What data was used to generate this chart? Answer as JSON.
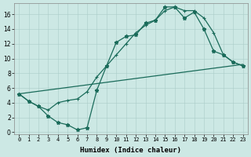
{
  "xlabel": "Humidex (Indice chaleur)",
  "bg_color": "#cce8e4",
  "line_color": "#1a6b5a",
  "xlim": [
    -0.5,
    23.5
  ],
  "ylim": [
    -0.3,
    17.5
  ],
  "xticks": [
    0,
    1,
    2,
    3,
    4,
    5,
    6,
    7,
    8,
    9,
    10,
    11,
    12,
    13,
    14,
    15,
    16,
    17,
    18,
    19,
    20,
    21,
    22,
    23
  ],
  "yticks": [
    0,
    2,
    4,
    6,
    8,
    10,
    12,
    14,
    16
  ],
  "line1_x": [
    0,
    1,
    2,
    3,
    4,
    5,
    6,
    7,
    8,
    9,
    10,
    11,
    12,
    13,
    14,
    15,
    16,
    17,
    18,
    19,
    20,
    21,
    22,
    23
  ],
  "line1_y": [
    5.2,
    4.2,
    3.5,
    2.2,
    1.3,
    1.0,
    0.3,
    0.6,
    5.7,
    9.0,
    12.2,
    13.0,
    13.2,
    14.8,
    15.2,
    17.0,
    17.0,
    15.5,
    16.3,
    14.0,
    11.0,
    10.5,
    9.5,
    9.0
  ],
  "line2_x": [
    0,
    1,
    2,
    3,
    4,
    5,
    6,
    7,
    8,
    9,
    10,
    11,
    12,
    13,
    14,
    15,
    16,
    17,
    18,
    19,
    20,
    21,
    22,
    23
  ],
  "line2_y": [
    5.2,
    4.2,
    3.5,
    3.0,
    4.0,
    4.3,
    4.5,
    5.5,
    7.5,
    9.0,
    10.5,
    12.0,
    13.5,
    14.5,
    15.2,
    16.5,
    17.0,
    16.5,
    16.5,
    15.5,
    13.5,
    10.5,
    9.5,
    9.0
  ],
  "line3_x": [
    0,
    23
  ],
  "line3_y": [
    5.2,
    9.2
  ]
}
